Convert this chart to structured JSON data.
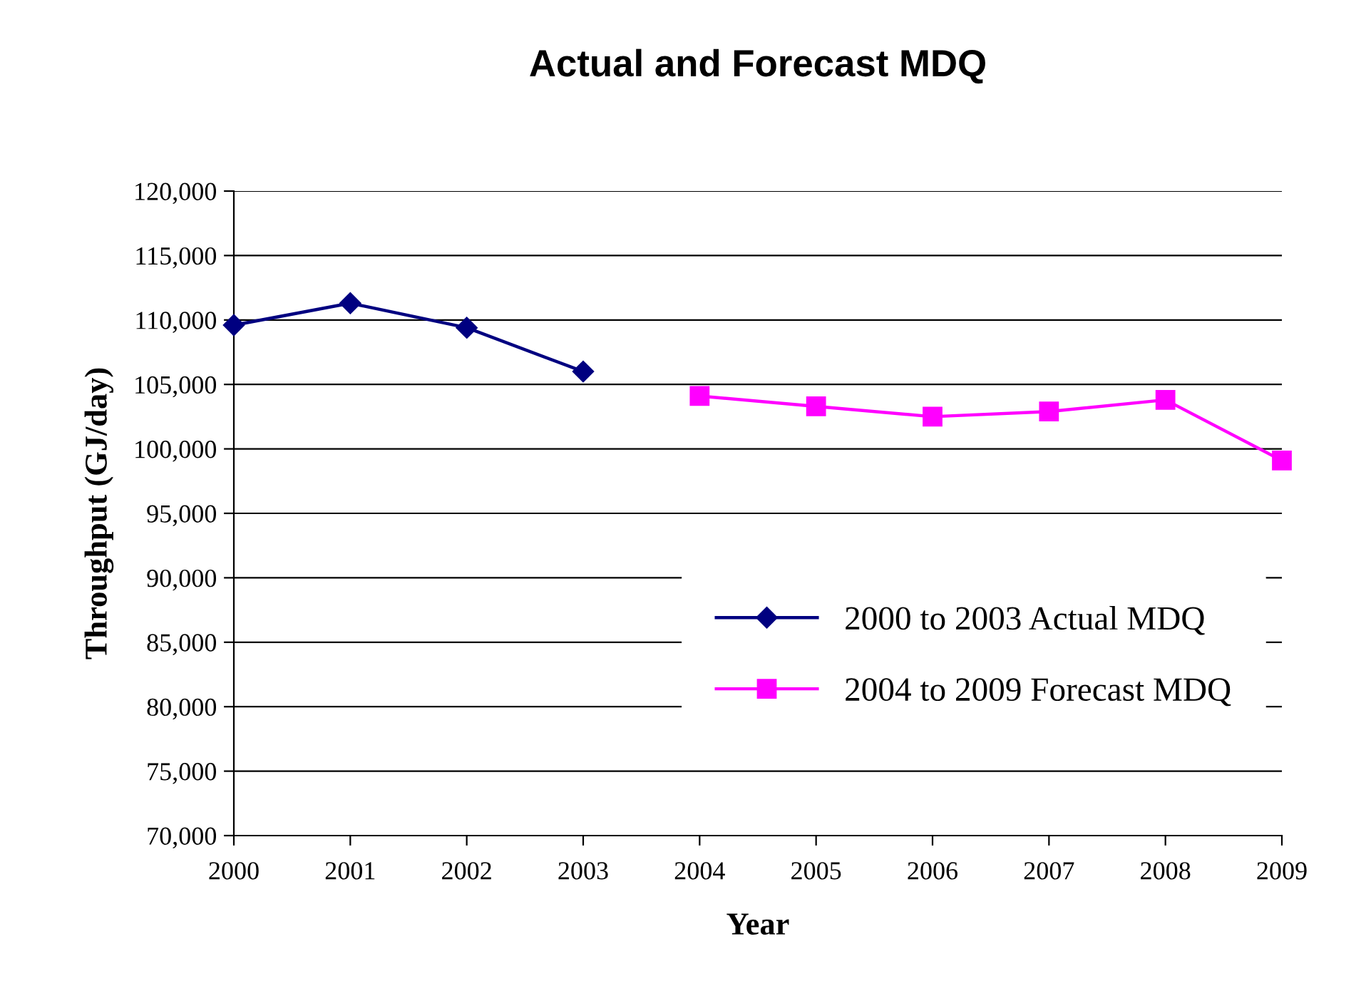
{
  "chart_data": {
    "type": "line",
    "title": "Actual and Forecast MDQ",
    "xlabel": "Year",
    "ylabel": "Throughput (GJ/day)",
    "xlim": [
      2000,
      2009
    ],
    "xticks": [
      2000,
      2001,
      2002,
      2003,
      2004,
      2005,
      2006,
      2007,
      2008,
      2009
    ],
    "ylim": [
      70000,
      120000
    ],
    "yticks": [
      {
        "value": 70000,
        "label": "70,000"
      },
      {
        "value": 75000,
        "label": "75,000"
      },
      {
        "value": 80000,
        "label": "80,000"
      },
      {
        "value": 85000,
        "label": "85,000"
      },
      {
        "value": 90000,
        "label": "90,000"
      },
      {
        "value": 95000,
        "label": "95,000"
      },
      {
        "value": 100000,
        "label": "100,000"
      },
      {
        "value": 105000,
        "label": "105,000"
      },
      {
        "value": 110000,
        "label": "110,000"
      },
      {
        "value": 115000,
        "label": "115,000"
      },
      {
        "value": 120000,
        "label": "120,000"
      }
    ],
    "grid": "y",
    "legend": "lower right",
    "series": [
      {
        "name": "2000 to 2003 Actual MDQ",
        "color": "#000080",
        "marker": "diamond",
        "x": [
          2000,
          2001,
          2002,
          2003
        ],
        "values": [
          109600,
          111300,
          109400,
          106000
        ]
      },
      {
        "name": "2004 to 2009 Forecast MDQ",
        "color": "#ff00ff",
        "marker": "square",
        "x": [
          2004,
          2005,
          2006,
          2007,
          2008,
          2009
        ],
        "values": [
          104100,
          103300,
          102500,
          102900,
          103800,
          99100
        ]
      }
    ]
  }
}
